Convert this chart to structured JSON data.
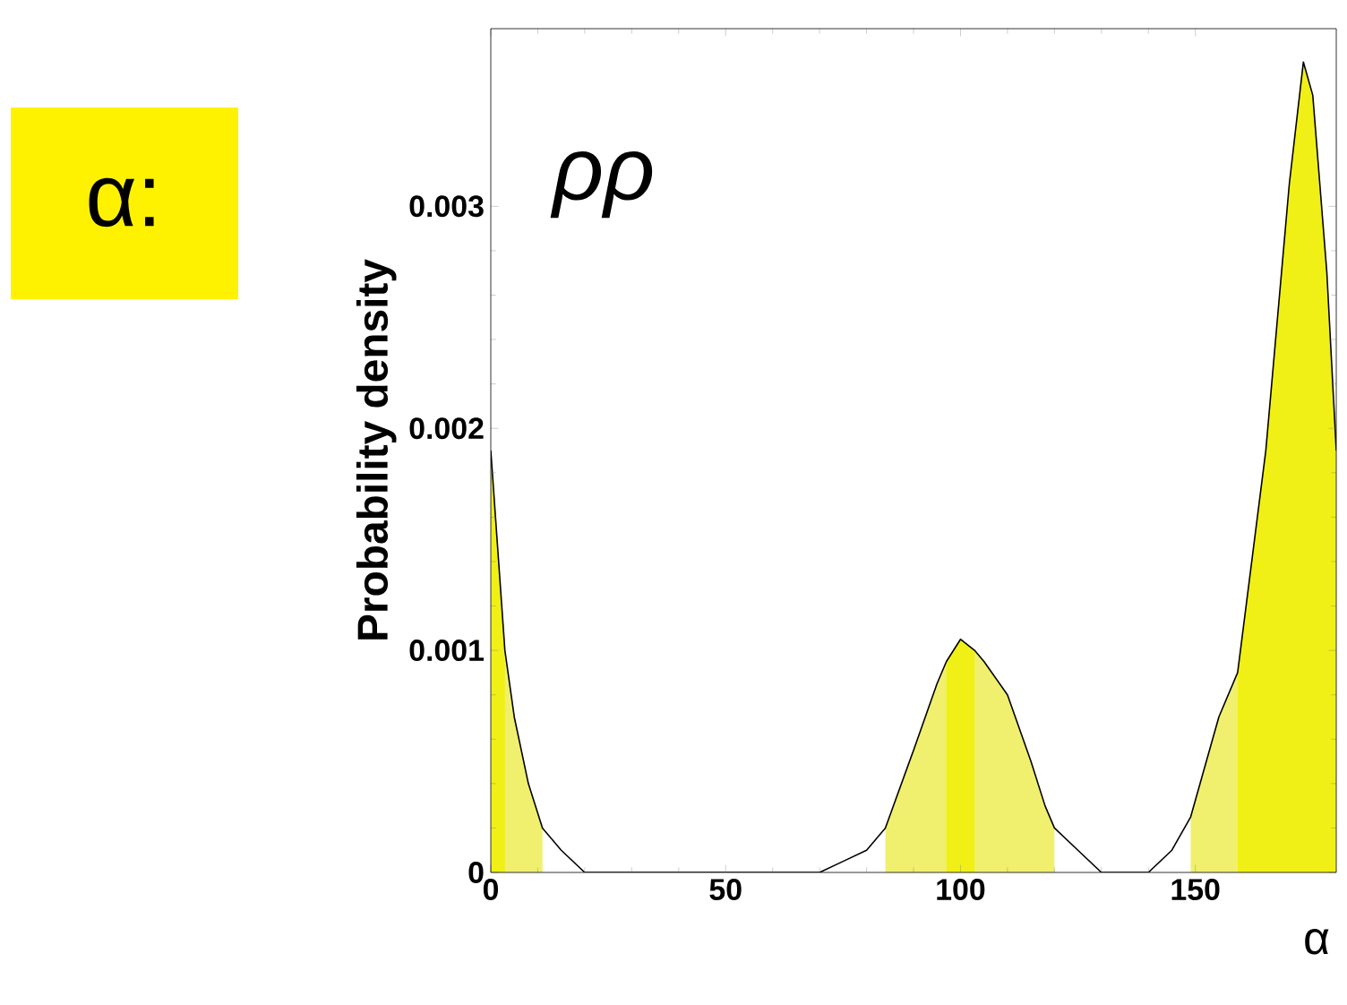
{
  "chart_data": {
    "type": "line",
    "xlabel": "α",
    "ylabel": "Probability density",
    "annotations": [
      "ρρ",
      "α:"
    ],
    "xlim": [
      0,
      180
    ],
    "ylim": [
      0,
      0.0038
    ],
    "xticks": [
      0,
      50,
      100,
      150
    ],
    "yticks": [
      0,
      0.001,
      0.002,
      0.003
    ],
    "series": [
      {
        "type": "area",
        "color": "#f0f06e",
        "x": [
          0,
          3,
          5,
          8,
          11,
          null,
          84,
          90,
          95,
          97,
          100,
          103,
          105,
          110,
          115,
          118,
          120,
          null,
          149,
          155,
          159
        ],
        "values": [
          0.0019,
          0.001,
          0.0007,
          0.0004,
          0.0002,
          null,
          0.0002,
          0.00055,
          0.00085,
          0.00095,
          0.00105,
          0.001,
          0.00095,
          0.0008,
          0.0005,
          0.0003,
          0.0002,
          null,
          0.00025,
          0.0007,
          0.0009
        ]
      },
      {
        "type": "area",
        "color": "#f0f016",
        "x": [
          0,
          3,
          null,
          97,
          100,
          103,
          null,
          159,
          165,
          170,
          173,
          175,
          178,
          180
        ],
        "values": [
          0.0019,
          0.001,
          null,
          0.00095,
          0.00105,
          0.001,
          null,
          0.0009,
          0.0019,
          0.0031,
          0.00365,
          0.0035,
          0.0027,
          0.0019
        ]
      },
      {
        "color": "#000000",
        "x": [
          0,
          3,
          5,
          8,
          11,
          15,
          20,
          25,
          30,
          40,
          50,
          60,
          65,
          70,
          75,
          80,
          84,
          90,
          95,
          97,
          100,
          103,
          105,
          110,
          115,
          118,
          120,
          125,
          130,
          135,
          140,
          145,
          149,
          155,
          159,
          165,
          170,
          173,
          175,
          178,
          180
        ],
        "values": [
          0.0019,
          0.001,
          0.0007,
          0.0004,
          0.0002,
          0.0001,
          0,
          0,
          0,
          0,
          0,
          0,
          0,
          0,
          5e-05,
          0.0001,
          0.0002,
          0.00055,
          0.00085,
          0.00095,
          0.00105,
          0.001,
          0.00095,
          0.0008,
          0.0005,
          0.0003,
          0.0002,
          0.0001,
          0,
          0,
          0,
          0.0001,
          0.00025,
          0.0007,
          0.0009,
          0.0019,
          0.0031,
          0.00365,
          0.0035,
          0.0027,
          0.0019
        ]
      }
    ]
  }
}
